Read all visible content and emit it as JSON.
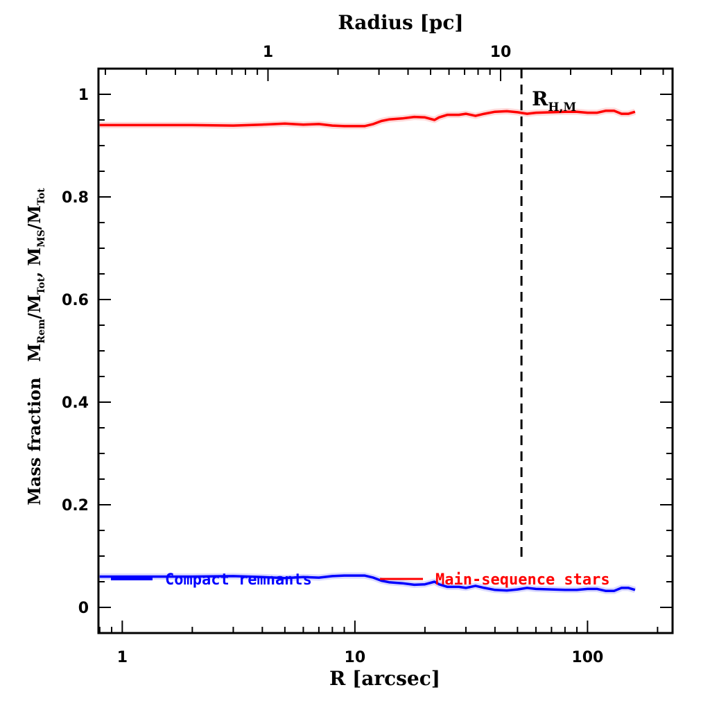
{
  "chart_data": {
    "type": "line",
    "title": "",
    "xlabel": "R [arcsec]",
    "xscale": "log",
    "xlim": [
      0.79,
      232
    ],
    "xticks": [
      1,
      10,
      100
    ],
    "xtick_labels": [
      "1",
      "10",
      "100"
    ],
    "top_axis": {
      "label": "Radius [pc]",
      "scale": "log",
      "arcsec_per_pc": 4.23,
      "ticks": [
        1,
        10
      ],
      "tick_labels": [
        "1",
        "10"
      ]
    },
    "ylabel": {
      "prefix": "Mass fraction",
      "parts": [
        {
          "main": "M",
          "sub": "Rem"
        },
        {
          "main": "/M",
          "sub": "Tot"
        },
        {
          "main": ",  M",
          "sub": "MS"
        },
        {
          "main": "/M",
          "sub": "Tot"
        }
      ]
    },
    "ylim": [
      -0.05,
      1.05
    ],
    "yticks": [
      0,
      0.2,
      0.4,
      0.6,
      0.8,
      1
    ],
    "ytick_labels": [
      "0",
      "0.2",
      "0.4",
      "0.6",
      "0.8",
      "1"
    ],
    "grid": false,
    "series": [
      {
        "name": "Main-sequence stars",
        "color": "#ff0000",
        "x": [
          0.8,
          1,
          1.5,
          2,
          3,
          4,
          5,
          6,
          7,
          8,
          9,
          10,
          11,
          12,
          13,
          14,
          16,
          18,
          20,
          22,
          23,
          25,
          28,
          30,
          33,
          36,
          40,
          45,
          50,
          55,
          60,
          70,
          80,
          90,
          100,
          110,
          120,
          130,
          140,
          150,
          160
        ],
        "y": [
          0.94,
          0.94,
          0.94,
          0.94,
          0.939,
          0.941,
          0.943,
          0.941,
          0.942,
          0.939,
          0.938,
          0.938,
          0.938,
          0.942,
          0.948,
          0.951,
          0.953,
          0.956,
          0.955,
          0.95,
          0.955,
          0.96,
          0.96,
          0.962,
          0.958,
          0.962,
          0.966,
          0.967,
          0.965,
          0.962,
          0.964,
          0.965,
          0.966,
          0.966,
          0.964,
          0.964,
          0.968,
          0.968,
          0.962,
          0.962,
          0.966
        ]
      },
      {
        "name": "Compact remnants",
        "color": "#0000ff",
        "x": [
          0.8,
          1,
          1.5,
          2,
          3,
          4,
          5,
          6,
          7,
          8,
          9,
          10,
          11,
          12,
          13,
          14,
          16,
          18,
          20,
          22,
          23,
          25,
          28,
          30,
          33,
          36,
          40,
          45,
          50,
          55,
          60,
          70,
          80,
          90,
          100,
          110,
          120,
          130,
          140,
          150,
          160
        ],
        "y": [
          0.06,
          0.06,
          0.06,
          0.06,
          0.061,
          0.059,
          0.057,
          0.059,
          0.058,
          0.061,
          0.062,
          0.062,
          0.062,
          0.058,
          0.052,
          0.049,
          0.047,
          0.044,
          0.045,
          0.05,
          0.045,
          0.04,
          0.04,
          0.038,
          0.042,
          0.038,
          0.034,
          0.033,
          0.035,
          0.038,
          0.036,
          0.035,
          0.034,
          0.034,
          0.036,
          0.036,
          0.032,
          0.032,
          0.038,
          0.038,
          0.034
        ]
      }
    ],
    "legend": {
      "placement": "bottom",
      "entries": [
        {
          "label": "Compact remnants",
          "color": "#0000ff"
        },
        {
          "label": "Main-sequence stars",
          "color": "#ff0000"
        }
      ]
    },
    "annotations": [
      {
        "type": "vline",
        "x": 52,
        "ymax": 0.097,
        "style": "dashed",
        "color": "#000000",
        "label_main": "R",
        "label_sub": "H,M"
      }
    ]
  }
}
